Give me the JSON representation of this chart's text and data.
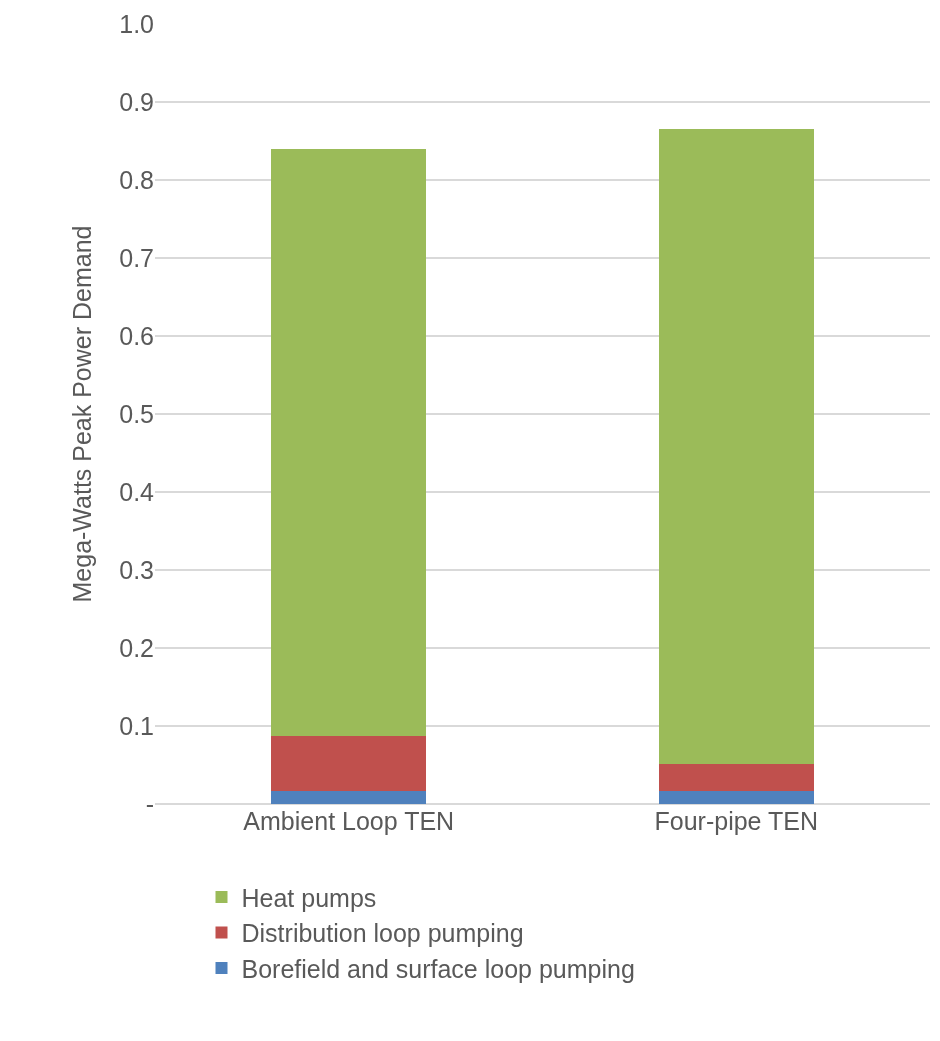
{
  "chart_data": {
    "type": "bar",
    "stacked": true,
    "ylabel": "Mega-Watts Peak Power Demand",
    "categories": [
      "Ambient Loop TEN",
      "Four-pipe TEN"
    ],
    "series": [
      {
        "name": "Borefield and surface loop pumping",
        "color": "#4f81bd",
        "values": [
          0.017,
          0.017
        ]
      },
      {
        "name": "Distribution loop pumping",
        "color": "#c0504d",
        "values": [
          0.07,
          0.034
        ]
      },
      {
        "name": "Heat pumps",
        "color": "#9bbb59",
        "values": [
          0.753,
          0.815
        ]
      }
    ],
    "ylim": [
      0,
      1.0
    ],
    "yticks": [
      {
        "value": 0,
        "label": "-"
      },
      0.1,
      0.2,
      0.3,
      0.4,
      0.5,
      0.6,
      0.7,
      0.8,
      0.9,
      {
        "value": 1,
        "label": "1.0"
      }
    ],
    "grid": "y",
    "legend": "bottom left"
  }
}
